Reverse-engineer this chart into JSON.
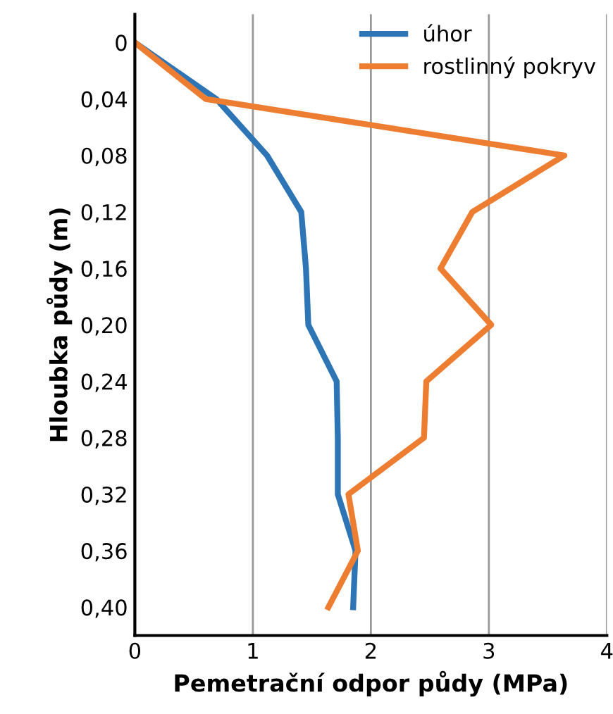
{
  "chart_data": {
    "type": "line",
    "xlabel": "Pemetrační odpor půdy (MPa)",
    "ylabel": "Hloubka půdy (m)",
    "series": [
      {
        "name": "úhor",
        "color": "#2e75b6",
        "x": [
          0,
          0.69,
          1.12,
          1.41,
          1.45,
          1.47,
          1.71,
          1.72,
          1.72,
          1.87,
          1.85
        ],
        "values": [
          0,
          0.04,
          0.08,
          0.12,
          0.16,
          0.2,
          0.24,
          0.28,
          0.32,
          0.36,
          0.4
        ]
      },
      {
        "name": "rostlinný pokryv",
        "color": "#ed7d31",
        "x": [
          0,
          0.6,
          3.64,
          2.86,
          2.59,
          3.02,
          2.47,
          2.45,
          1.81,
          1.89,
          1.64
        ],
        "values": [
          0,
          0.04,
          0.08,
          0.12,
          0.16,
          0.2,
          0.24,
          0.28,
          0.32,
          0.36,
          0.4
        ]
      }
    ],
    "xlim": [
      0,
      4
    ],
    "xticks": [
      0,
      1,
      2,
      3,
      4
    ],
    "ylim": [
      0.42,
      -0.02
    ],
    "yticks": [
      0,
      {
        "value": 0.04,
        "label": "0,04"
      },
      {
        "value": 0.08,
        "label": "0,08"
      },
      {
        "value": 0.12,
        "label": "0,12"
      },
      {
        "value": 0.16,
        "label": "0,16"
      },
      {
        "value": 0.2,
        "label": "0,20"
      },
      {
        "value": 0.24,
        "label": "0,24"
      },
      {
        "value": 0.28,
        "label": "0,28"
      },
      {
        "value": 0.32,
        "label": "0,32"
      },
      {
        "value": 0.36,
        "label": "0,36"
      },
      {
        "value": 0.4,
        "label": "0,40"
      }
    ],
    "grid": "x",
    "legend": "top right"
  }
}
